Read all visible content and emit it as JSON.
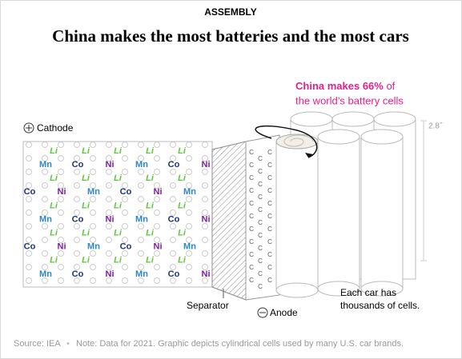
{
  "kicker": "ASSEMBLY",
  "title": "China makes the most batteries and the most cars",
  "annotation": {
    "line1_lead": "China makes 66%",
    "line1_rest": " of",
    "line2": "the world’s battery cells"
  },
  "labels": {
    "cathode": "Cathode",
    "separator": "Separator",
    "anode": "Anode",
    "cell_size": "2.8˝",
    "cells_line1": "Each car has",
    "cells_line2": "thousands of cells."
  },
  "cathode_atoms": [
    [
      "Li",
      "Li",
      "Li",
      "Li",
      "Li"
    ],
    [
      "Mn",
      "Co",
      "Ni",
      "Mn",
      "Co",
      "Ni"
    ],
    [
      "Li",
      "Li",
      "Li",
      "Li",
      "Li"
    ],
    [
      "Co",
      "Ni",
      "Mn",
      "Co",
      "Ni",
      "Mn"
    ],
    [
      "Li",
      "Li",
      "Li",
      "Li",
      "Li"
    ],
    [
      "Mn",
      "Co",
      "Ni",
      "Mn",
      "Co",
      "Ni"
    ],
    [
      "Li",
      "Li",
      "Li",
      "Li",
      "Li"
    ],
    [
      "Co",
      "Ni",
      "Mn",
      "Co",
      "Ni",
      "Mn"
    ],
    [
      "Li",
      "Li",
      "Li",
      "Li",
      "Li"
    ],
    [
      "Mn",
      "Co",
      "Ni",
      "Mn",
      "Co",
      "Ni"
    ]
  ],
  "atom_colors": {
    "Li": "#5cc83a",
    "Mn": "#2d86c8",
    "Co": "#1d3578",
    "Ni": "#7b1ea2"
  },
  "anode_atom": "C",
  "footer": {
    "source": "Source: IEA",
    "note": "Note: Data for 2021. Graphic depicts cylindrical cells used by many U.S. car brands."
  }
}
